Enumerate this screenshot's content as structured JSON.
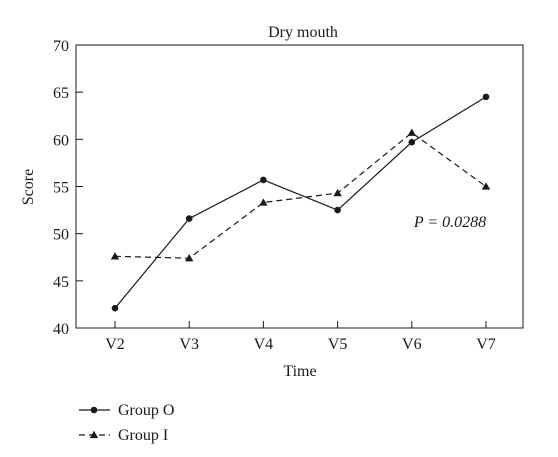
{
  "chart_data": {
    "type": "line",
    "title": "Dry mouth",
    "xlabel": "Time",
    "ylabel": "Score",
    "categories": [
      "V2",
      "V3",
      "V4",
      "V5",
      "V6",
      "V7"
    ],
    "ylim": [
      40,
      70
    ],
    "yticks": [
      40,
      45,
      50,
      55,
      60,
      65,
      70
    ],
    "grid": false,
    "legend_position": "bottom-left",
    "annotation": "P = 0.0288",
    "series": [
      {
        "name": "Group O",
        "line": "solid",
        "marker": "circle",
        "color": "#1a1a1a",
        "values": [
          42.1,
          51.6,
          55.7,
          52.5,
          59.7,
          64.5
        ]
      },
      {
        "name": "Group I",
        "line": "dashed",
        "marker": "triangle",
        "color": "#1a1a1a",
        "values": [
          47.6,
          47.4,
          53.3,
          54.3,
          60.7,
          55.0
        ]
      }
    ]
  }
}
